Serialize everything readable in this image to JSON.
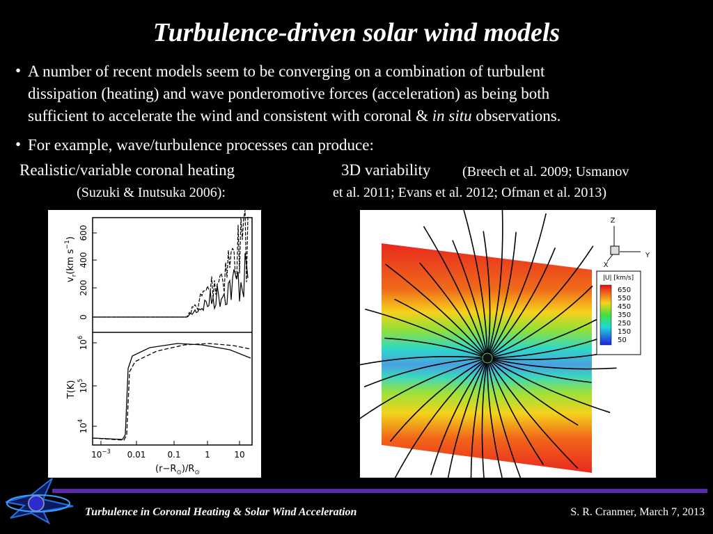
{
  "header": {
    "title": "Turbulence-driven solar wind models"
  },
  "bullets": [
    {
      "marker": "•",
      "lines": [
        "A number of recent models seem to be converging on a combination of turbulent",
        "dissipation (heating) and wave ponderomotive forces (acceleration) as being both"
      ],
      "last_line": {
        "before": "sufficient to accelerate the wind and consistent with coronal & ",
        "italic": "in situ",
        "after": " observations."
      }
    },
    {
      "marker": "•",
      "text": "For example, wave/turbulence processes can produce:"
    }
  ],
  "panels": {
    "left": {
      "caption": "Realistic/variable coronal heating",
      "citation": "(Suzuki & Inutsuka 2006):",
      "figure": {
        "vr_label": {
          "main": "v",
          "sub": "r",
          "unit": "(km s",
          "sup": "−1",
          "close": ")"
        },
        "vr_ticks": [
          "0",
          "200",
          "400",
          "600"
        ],
        "t_label": "T(K)",
        "t_ticks": [
          {
            "base": "10",
            "exp": "4"
          },
          {
            "base": "10",
            "exp": "5"
          },
          {
            "base": "10",
            "exp": "6"
          }
        ],
        "x_ticks": [
          {
            "base": "10",
            "exp": "−3"
          },
          "0.01",
          "0.1",
          "1",
          "10"
        ],
        "x_label": {
          "a": "(r−R",
          "s1": "⊙",
          "b": ")/R",
          "s2": "⊙"
        }
      }
    },
    "right": {
      "caption": "3D variability",
      "citation_lines": [
        "(Breech et al. 2009; Usmanov",
        "et al. 2011; Evans et al. 2012; Ofman et al. 2013)"
      ],
      "figure": {
        "axes": {
          "z": "Z",
          "y": "Y",
          "x": "X"
        },
        "legend_title": "|U| [km/s]",
        "legend_levels": [
          "650",
          "550",
          "450",
          "350",
          "250",
          "150",
          "50"
        ]
      }
    }
  },
  "footer": {
    "title": "Turbulence in Coronal Heating & Solar Wind Acceleration",
    "credit": "S. R. Cranmer, March 7, 2013"
  }
}
